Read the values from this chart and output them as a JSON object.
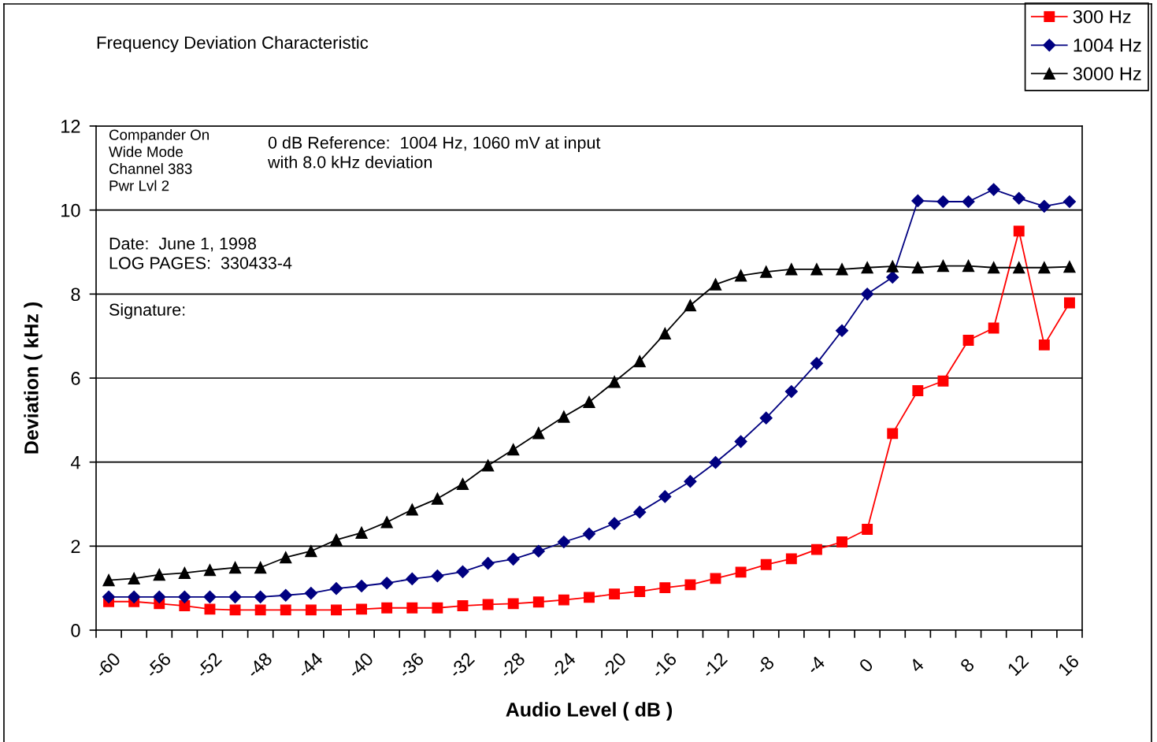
{
  "chart_data": {
    "type": "line",
    "title": "Frequency Deviation Characteristic",
    "xlabel": "Audio Level ( dB )",
    "ylabel": "Deviation ( kHz )",
    "categories": [
      "-60",
      null,
      "-56",
      null,
      "-52",
      null,
      "-48",
      null,
      "-44",
      null,
      "-40",
      null,
      "-36",
      null,
      "-32",
      null,
      "-28",
      null,
      "-24",
      null,
      "-20",
      null,
      "-16",
      null,
      "-12",
      null,
      "-8",
      null,
      "-4",
      null,
      "0",
      null,
      "4",
      null,
      "8",
      null,
      "12",
      null,
      "16"
    ],
    "series": [
      {
        "name": "300 Hz",
        "color": "#ff0000",
        "marker": "square",
        "values": [
          0.68,
          0.68,
          0.63,
          0.58,
          0.5,
          0.48,
          0.48,
          0.48,
          0.48,
          0.48,
          0.5,
          0.53,
          0.53,
          0.53,
          0.58,
          0.61,
          0.63,
          0.67,
          0.72,
          0.78,
          0.86,
          0.92,
          1.01,
          1.08,
          1.23,
          1.38,
          1.56,
          1.7,
          1.92,
          2.1,
          2.4,
          4.68,
          5.7,
          5.93,
          6.9,
          7.19,
          9.5,
          6.79,
          7.79
        ]
      },
      {
        "name": "1004 Hz",
        "color": "#000080",
        "marker": "diamond",
        "values": [
          0.79,
          0.79,
          0.79,
          0.79,
          0.79,
          0.79,
          0.79,
          0.83,
          0.88,
          0.99,
          1.05,
          1.12,
          1.22,
          1.29,
          1.39,
          1.59,
          1.69,
          1.88,
          2.1,
          2.29,
          2.54,
          2.81,
          3.18,
          3.54,
          3.99,
          4.49,
          5.05,
          5.68,
          6.35,
          7.13,
          8.0,
          8.4,
          10.22,
          10.2,
          10.2,
          10.49,
          10.28,
          10.09,
          10.2
        ]
      },
      {
        "name": "3000 Hz",
        "color": "#000000",
        "marker": "triangle",
        "values": [
          1.19,
          1.23,
          1.32,
          1.36,
          1.43,
          1.49,
          1.49,
          1.73,
          1.88,
          2.15,
          2.32,
          2.57,
          2.87,
          3.13,
          3.48,
          3.92,
          4.3,
          4.69,
          5.08,
          5.43,
          5.91,
          6.4,
          7.06,
          7.73,
          8.23,
          8.44,
          8.53,
          8.59,
          8.59,
          8.59,
          8.63,
          8.66,
          8.63,
          8.67,
          8.67,
          8.63,
          8.63,
          8.63,
          8.65
        ]
      }
    ],
    "ylim": [
      0,
      12
    ],
    "yticks": [
      0,
      2,
      4,
      6,
      8,
      10,
      12
    ],
    "grid": "y",
    "legend": "top right",
    "annotations": [
      "Compander On\nWide Mode\nChannel 383\nPwr Lvl 2",
      "0 dB Reference:  1004 Hz, 1060 mV at input\nwith 8.0 kHz deviation",
      "Date:  June 1, 1998\nLOG PAGES:  330433-4",
      "Signature:"
    ]
  }
}
